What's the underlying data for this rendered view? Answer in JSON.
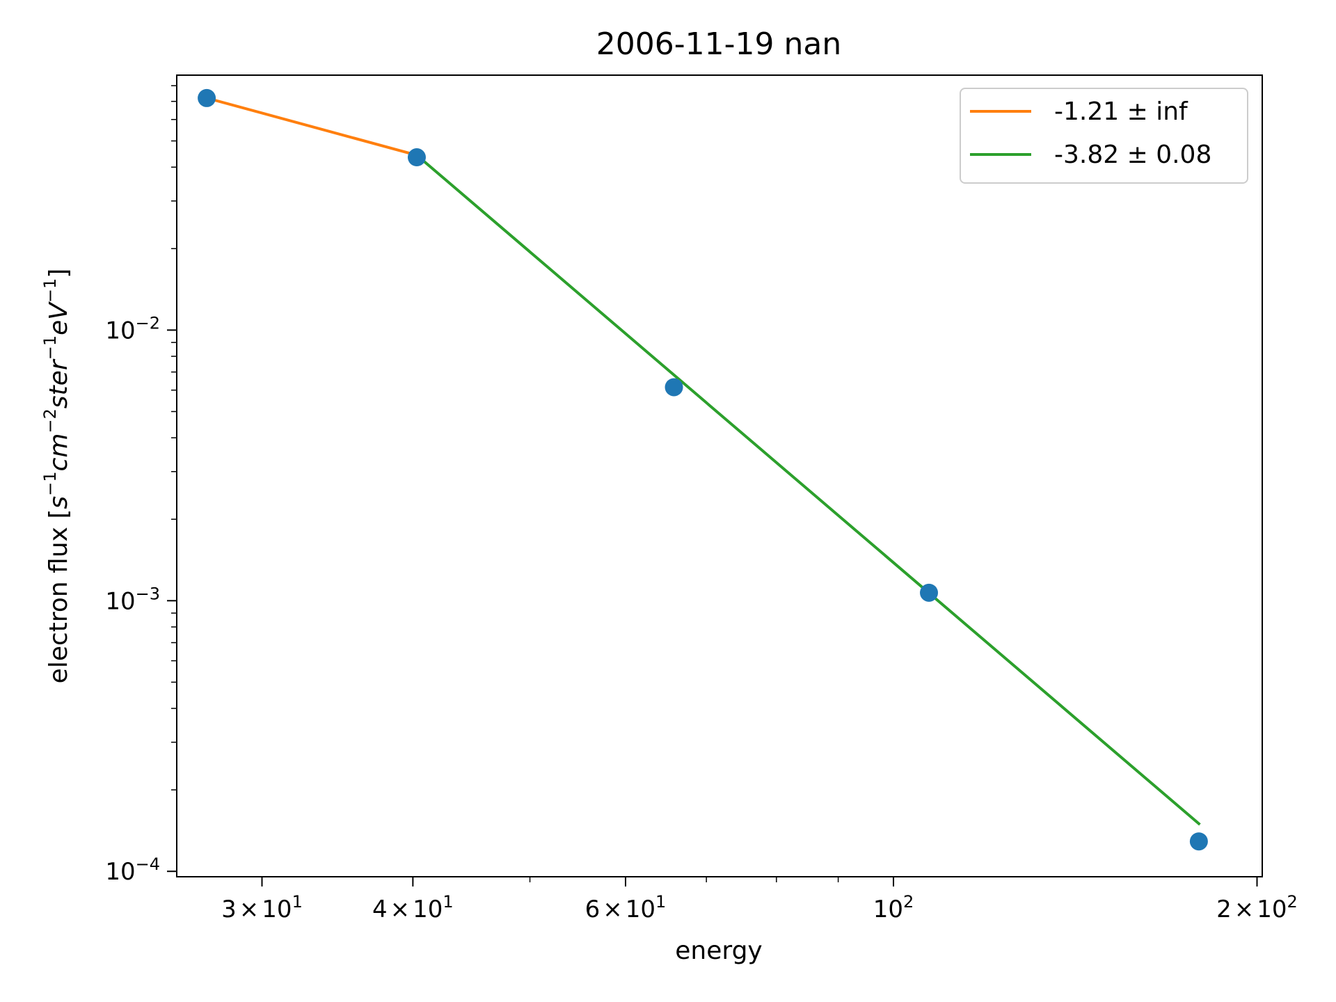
{
  "chart_data": {
    "type": "line",
    "title": "2006-11-19 nan",
    "xlabel": "energy",
    "ylabel_prefix": "electron flux",
    "ylabel_units": {
      "open": "[",
      "t1": "s",
      "e1": "−1",
      "t2": "cm",
      "e2": "−2",
      "t3": "ster",
      "e3": "−1",
      "t4": "eV",
      "e4": "−1",
      "close": "]"
    },
    "x_scale": "log",
    "y_scale": "log",
    "xlim": [
      25.5,
      202
    ],
    "ylim": [
      9.55e-05,
      0.0875
    ],
    "x_ticks": [
      {
        "value": 30,
        "base": "3",
        "exp": "1"
      },
      {
        "value": 40,
        "base": "4",
        "exp": "1"
      },
      {
        "value": 60,
        "base": "6",
        "exp": "1"
      },
      {
        "value": 100,
        "base": "",
        "exp": "2"
      },
      {
        "value": 200,
        "base": "2",
        "exp": "2"
      }
    ],
    "y_ticks": [
      {
        "value": 0.01,
        "exp": "−2"
      },
      {
        "value": 0.001,
        "exp": "−3"
      },
      {
        "value": 0.0001,
        "exp": "−4"
      }
    ],
    "points": {
      "color": "#1f77b4",
      "x": [
        27.0,
        40.3,
        65.8,
        107.0,
        179.0
      ],
      "y": [
        0.072,
        0.0435,
        0.00615,
        0.00107,
        0.000129
      ]
    },
    "series": [
      {
        "name": "-1.21 ± inf",
        "color": "#ff7f0e",
        "x": [
          27.0,
          40.3
        ],
        "y": [
          0.072,
          0.0443
        ]
      },
      {
        "name": "-3.82 ± 0.08",
        "color": "#2ca02c",
        "x": [
          40.3,
          179.0
        ],
        "y": [
          0.0443,
          0.00015
        ]
      }
    ],
    "grid": false,
    "legend": "top-right"
  }
}
